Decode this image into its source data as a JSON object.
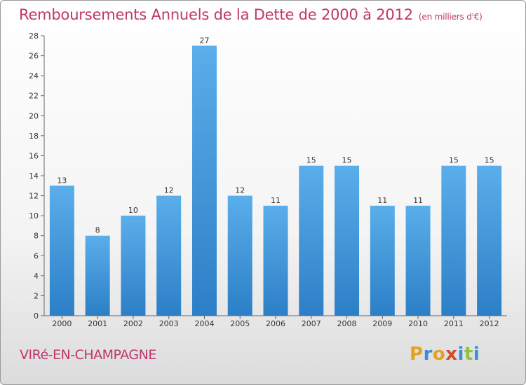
{
  "title": "Remboursements Annuels de la Dette de 2000 à 2012",
  "unit": "(en milliers d'€)",
  "commune": "VIRé-EN-CHAMPAGNE",
  "logo": {
    "letters": [
      "P",
      "r",
      "o",
      "x",
      "i",
      "t",
      "i"
    ],
    "colors": [
      "#e8a020",
      "#3a8fd8",
      "#e8a020",
      "#d64a2a",
      "#3a8fd8",
      "#8cc63f",
      "#3a8fd8"
    ]
  },
  "colors": {
    "bar": "#3d96de",
    "accent": "#c0366d"
  },
  "chart_data": {
    "type": "bar",
    "categories": [
      "2000",
      "2001",
      "2002",
      "2003",
      "2004",
      "2005",
      "2006",
      "2007",
      "2008",
      "2009",
      "2010",
      "2011",
      "2012"
    ],
    "values": [
      13,
      8,
      10,
      12,
      27,
      12,
      11,
      15,
      15,
      11,
      11,
      15,
      15
    ],
    "title": "Remboursements Annuels de la Dette de 2000 à 2012",
    "xlabel": "",
    "ylabel": "",
    "ylim": [
      0,
      28
    ],
    "yticks": [
      0,
      2,
      4,
      6,
      8,
      10,
      12,
      14,
      16,
      18,
      20,
      22,
      24,
      26,
      28
    ],
    "grid": false,
    "legend": "none"
  }
}
